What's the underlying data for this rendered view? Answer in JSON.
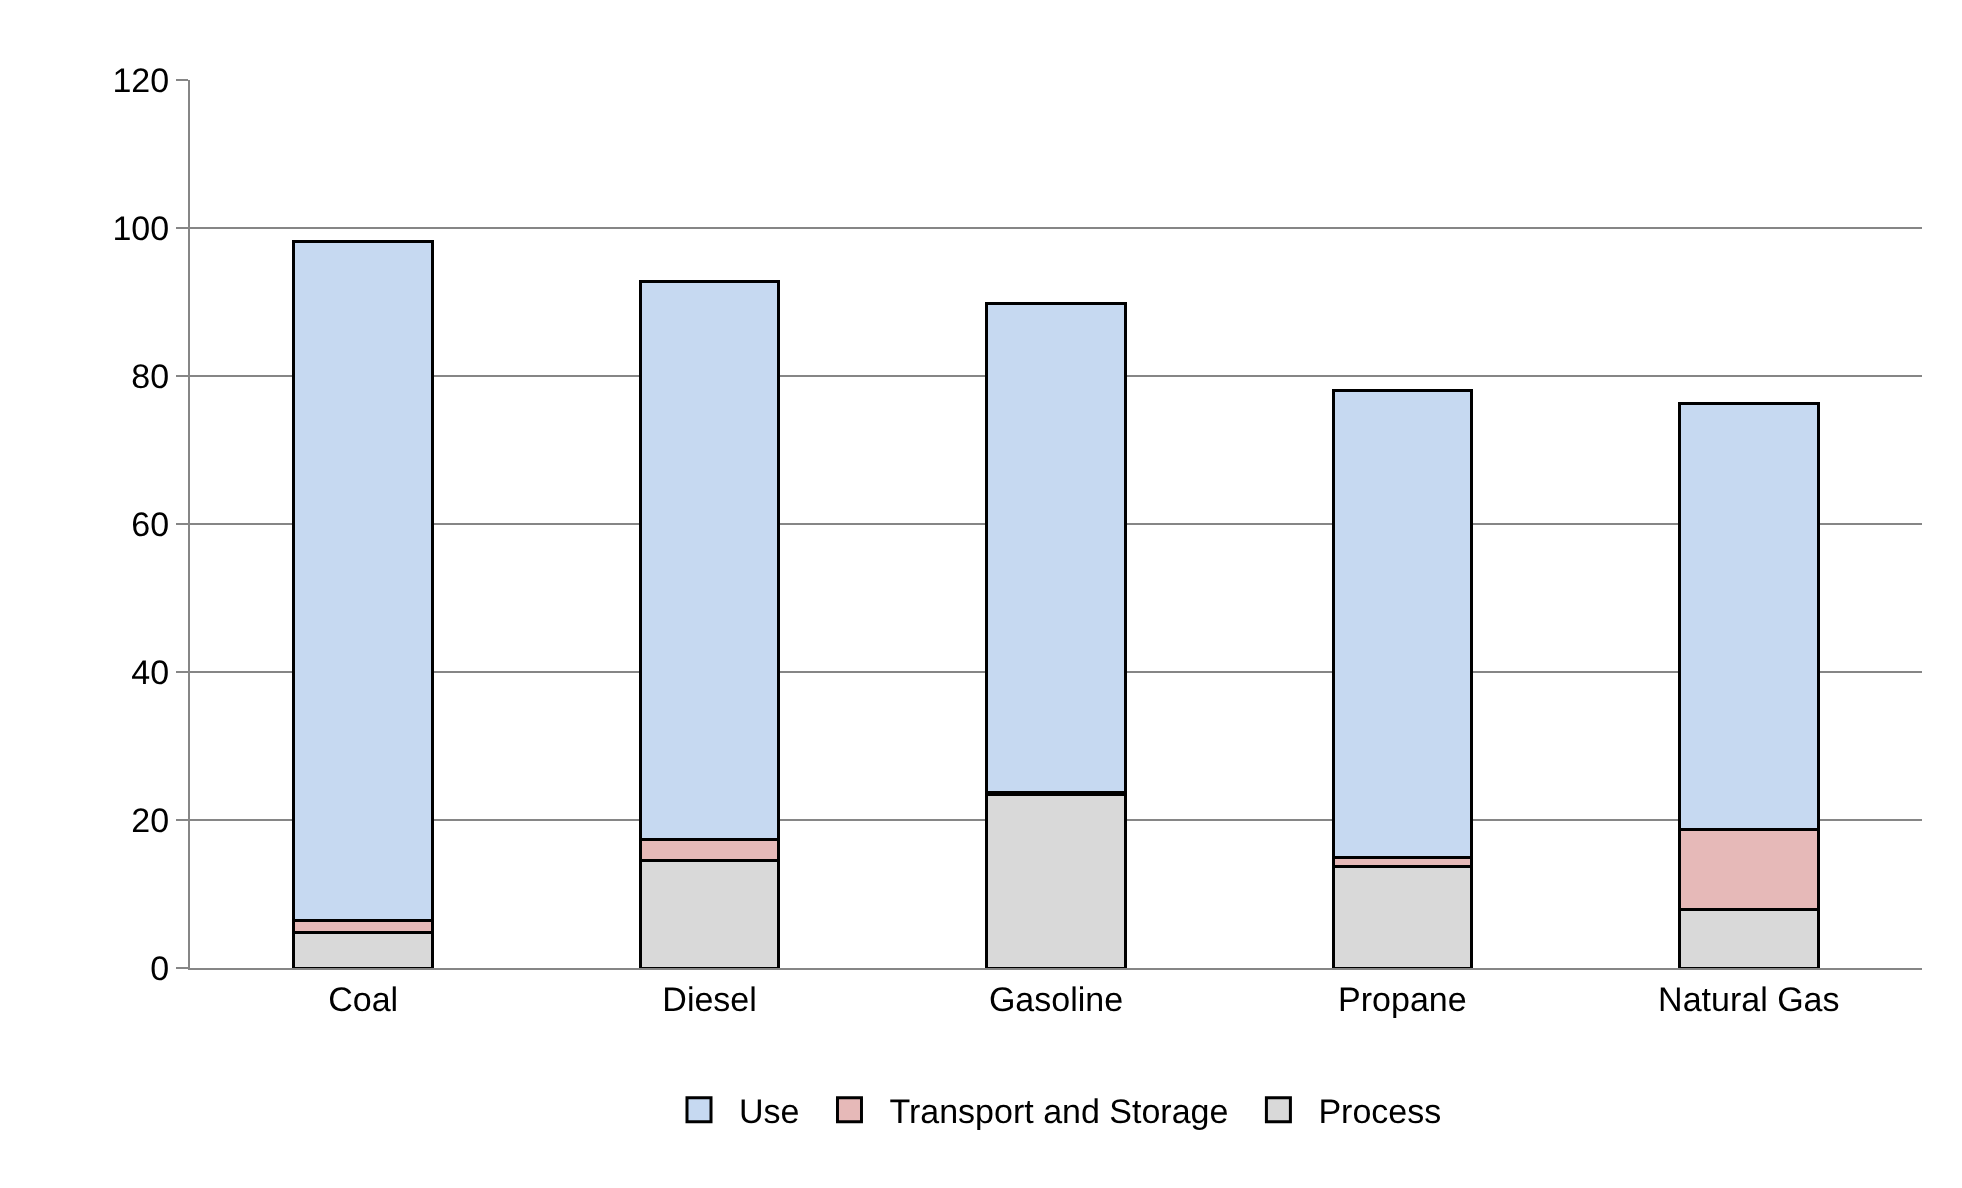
{
  "chart_data": {
    "type": "bar",
    "stacked": true,
    "categories": [
      "Coal",
      "Diesel",
      "Gasoline",
      "Propane",
      "Natural Gas"
    ],
    "series": [
      {
        "name": "Process",
        "color": "#d9d9d9",
        "values": [
          4.8,
          14.5,
          23.4,
          13.7,
          7.9
        ]
      },
      {
        "name": "Transport and Storage",
        "color": "#e6b9b8",
        "values": [
          1.6,
          2.8,
          0.3,
          1.3,
          10.8
        ]
      },
      {
        "name": "Use",
        "color": "#c6d9f1",
        "values": [
          91.8,
          75.5,
          66.1,
          63.1,
          57.6
        ]
      }
    ],
    "ylim": [
      0,
      120
    ],
    "yticks": [
      0,
      20,
      40,
      60,
      80,
      100,
      120
    ],
    "grid": "y",
    "legend": "bottom"
  }
}
